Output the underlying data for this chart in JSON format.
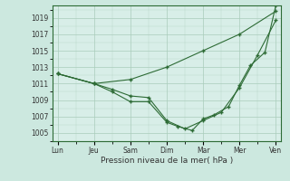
{
  "background_color": "#cce8df",
  "plot_bg_color": "#d8eee8",
  "grid_color": "#aaccbb",
  "line_color": "#2d6b35",
  "marker": "+",
  "xlabel": "Pression niveau de la mer( hPa )",
  "ylim": [
    1004.0,
    1020.5
  ],
  "yticks": [
    1005,
    1007,
    1009,
    1011,
    1013,
    1015,
    1017,
    1019
  ],
  "x_labels": [
    "Lun",
    "Jeu",
    "Sam",
    "Dim",
    "Mar",
    "Mer",
    "Ven"
  ],
  "x_positions": [
    0,
    1,
    2,
    3,
    4,
    5,
    6
  ],
  "lines": [
    {
      "x": [
        0,
        1,
        2,
        3,
        4,
        5,
        6
      ],
      "y": [
        1012.2,
        1011.0,
        1011.5,
        1013.0,
        1015.0,
        1017.0,
        1019.8
      ]
    },
    {
      "x": [
        0,
        1,
        1.5,
        2,
        2.5,
        3,
        3.5,
        4,
        4.5,
        5,
        5.5,
        6
      ],
      "y": [
        1012.2,
        1011.0,
        1010.3,
        1009.5,
        1009.3,
        1006.5,
        1005.5,
        1006.5,
        1007.5,
        1010.5,
        1014.5,
        1018.7
      ]
    },
    {
      "x": [
        0,
        1,
        1.5,
        2,
        2.5,
        3,
        3.3,
        3.7,
        4,
        4.3,
        4.7,
        5,
        5.3,
        5.7,
        6
      ],
      "y": [
        1012.2,
        1011.0,
        1010.0,
        1008.8,
        1008.8,
        1006.3,
        1005.8,
        1005.3,
        1006.7,
        1007.2,
        1008.2,
        1010.8,
        1013.2,
        1014.8,
        1020.5
      ]
    }
  ]
}
